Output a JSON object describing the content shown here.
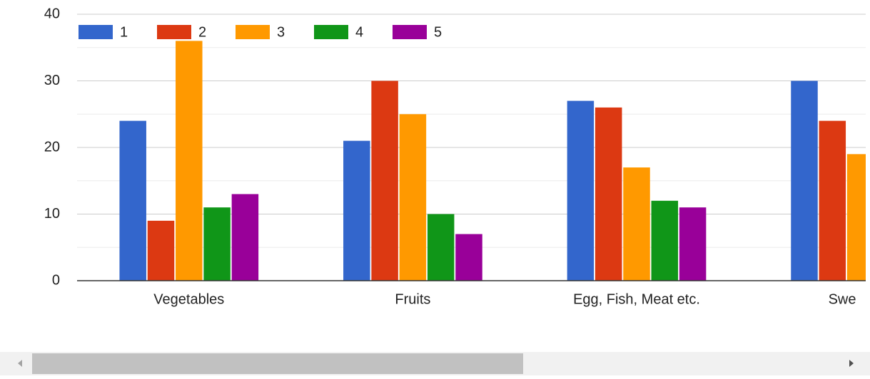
{
  "chart_data": {
    "type": "bar",
    "categories": [
      "Vegetables",
      "Fruits",
      "Egg, Fish, Meat etc.",
      "Swe"
    ],
    "series": [
      {
        "name": "1",
        "color": "#3366cc",
        "values": [
          24,
          21,
          27,
          30
        ]
      },
      {
        "name": "2",
        "color": "#dc3912",
        "values": [
          9,
          30,
          26,
          24
        ]
      },
      {
        "name": "3",
        "color": "#ff9900",
        "values": [
          36,
          25,
          17,
          19
        ]
      },
      {
        "name": "4",
        "color": "#109618",
        "values": [
          11,
          10,
          12,
          null
        ]
      },
      {
        "name": "5",
        "color": "#990099",
        "values": [
          13,
          7,
          11,
          null
        ]
      }
    ],
    "ylim": [
      0,
      40
    ],
    "yticks": [
      0,
      10,
      20,
      30,
      40
    ],
    "grid": true,
    "legend": "top"
  }
}
